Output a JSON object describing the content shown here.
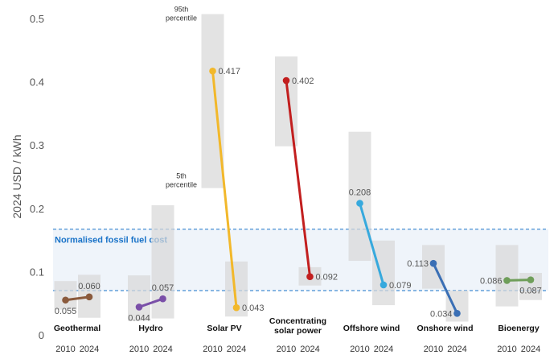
{
  "chart_data": {
    "type": "range-dumbbell",
    "ylabel": "2024 USD / kWh",
    "ylim": [
      0,
      0.5
    ],
    "yticks": [
      0,
      0.1,
      0.2,
      0.3,
      0.4,
      0.5
    ],
    "ytick_labels": [
      "0",
      "0.1",
      "0.2",
      "0.3",
      "0.4",
      "0.5"
    ],
    "x_years": [
      "2010",
      "2024"
    ],
    "fossil_band": {
      "label": "Normalised fossil fuel cost",
      "low": 0.07,
      "high": 0.167,
      "color": "#1a73c8"
    },
    "annotations": {
      "p95": "95th\npercentile",
      "p5": "5th\npercentile"
    },
    "series": [
      {
        "name": "Geothermal",
        "color": "#8a5a3c",
        "v2010": 0.055,
        "v2024": 0.06,
        "l2010": "0.055",
        "l2024": "0.060",
        "r2010": [
          0.04,
          0.085
        ],
        "r2024": [
          0.027,
          0.095
        ]
      },
      {
        "name": "Hydro",
        "color": "#7a4fa8",
        "v2010": 0.044,
        "v2024": 0.057,
        "l2010": "0.044",
        "l2024": "0.057",
        "r2010": [
          0.022,
          0.094
        ],
        "r2024": [
          0.026,
          0.205
        ]
      },
      {
        "name": "Solar PV",
        "color": "#f2b82b",
        "v2010": 0.417,
        "v2024": 0.043,
        "l2010": "0.417",
        "l2024": "0.043",
        "r2010": [
          0.232,
          0.507
        ],
        "r2024": [
          0.029,
          0.116
        ]
      },
      {
        "name": "Concentrating\nsolar power",
        "color": "#c21f1f",
        "v2010": 0.402,
        "v2024": 0.092,
        "l2010": "0.402",
        "l2024": "0.092",
        "r2010": [
          0.298,
          0.44
        ],
        "r2024": [
          0.078,
          0.107
        ]
      },
      {
        "name": "Offshore wind",
        "color": "#37a9dd",
        "v2010": 0.208,
        "v2024": 0.079,
        "l2010": "0.208",
        "l2024": "0.079",
        "r2010": [
          0.117,
          0.321
        ],
        "r2024": [
          0.047,
          0.149
        ]
      },
      {
        "name": "Onshore wind",
        "color": "#3a6fb5",
        "v2010": 0.113,
        "v2024": 0.034,
        "l2010": "0.113",
        "l2024": "0.034",
        "r2010": [
          0.073,
          0.142
        ],
        "r2024": [
          0.021,
          0.07
        ]
      },
      {
        "name": "Bioenergy",
        "color": "#6f9e5a",
        "v2010": 0.086,
        "v2024": 0.087,
        "l2010": "0.086",
        "l2024": "0.087",
        "r2010": [
          0.045,
          0.142
        ],
        "r2024": [
          0.055,
          0.098
        ]
      }
    ]
  }
}
